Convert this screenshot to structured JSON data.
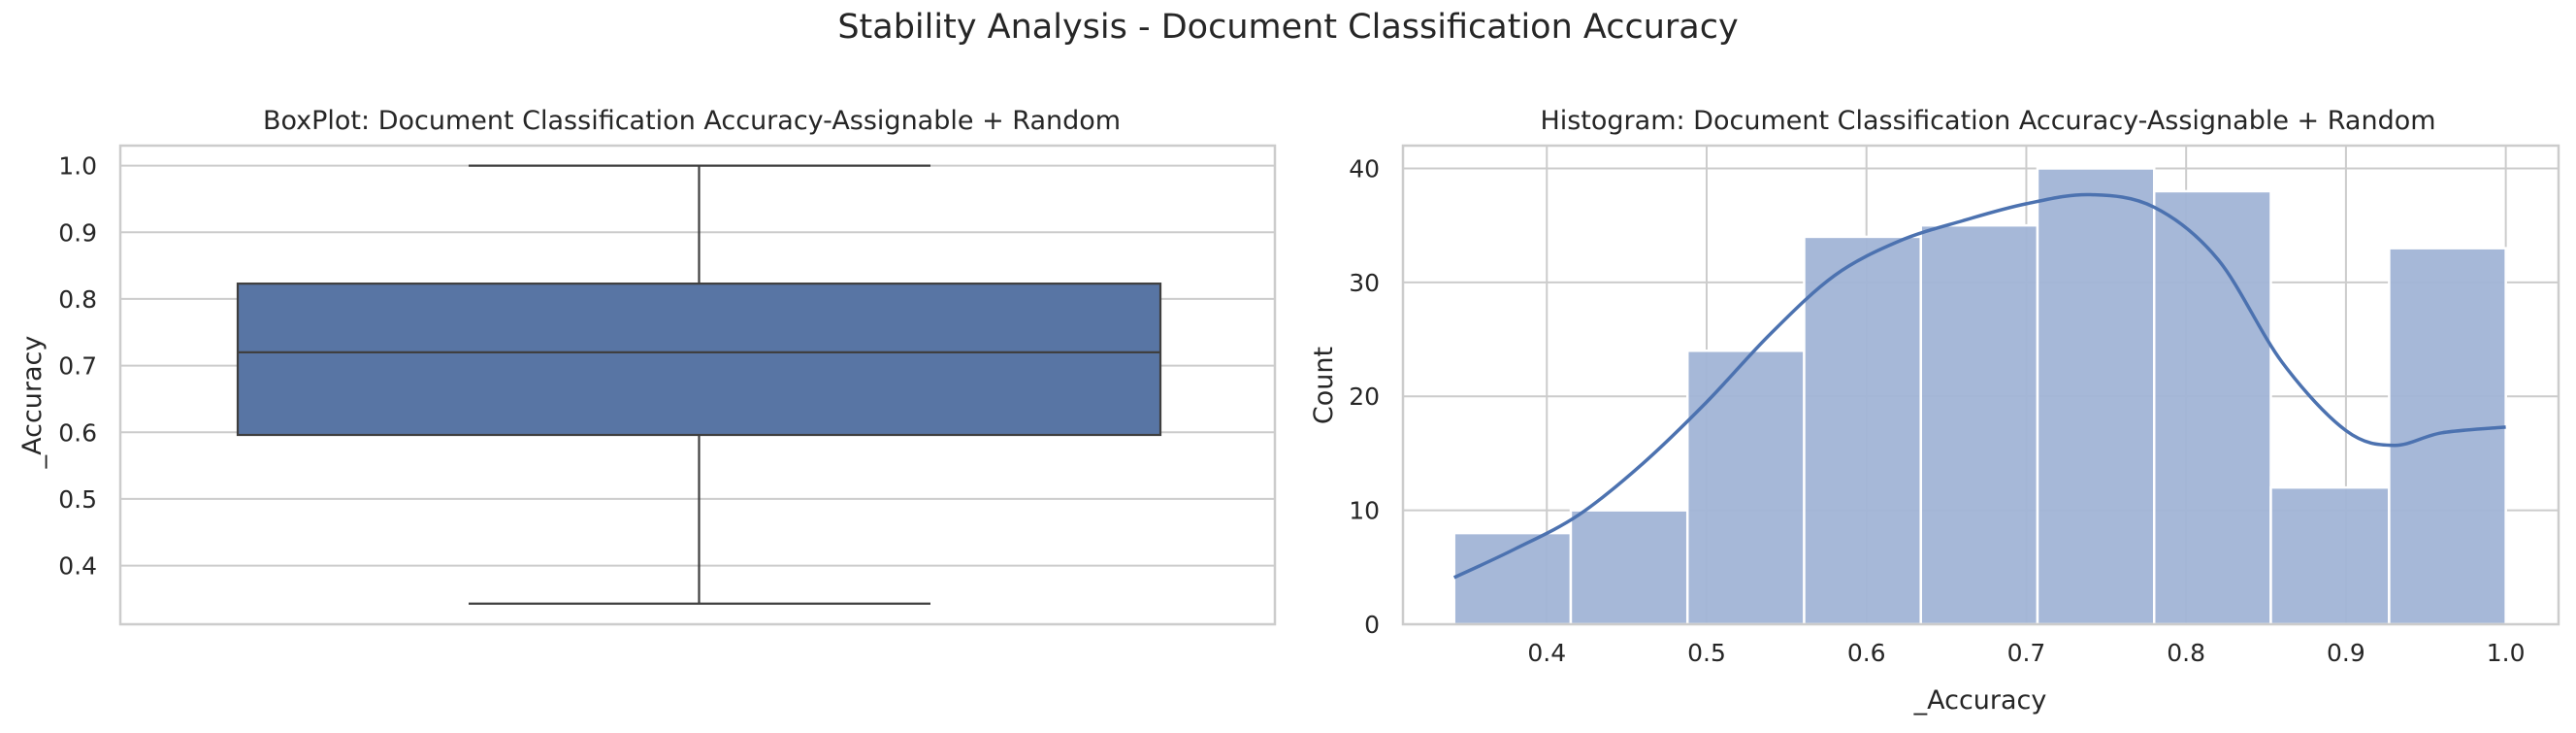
{
  "figure": {
    "suptitle": "Stability Analysis - Document Classification Accuracy"
  },
  "chart_data": [
    {
      "type": "box",
      "title": "BoxPlot: Document Classification Accuracy-Assignable + Random",
      "xlabel": "",
      "ylabel": "_Accuracy",
      "ylim": [
        0.312,
        1.03
      ],
      "yticks": [
        0.4,
        0.5,
        0.6,
        0.7,
        0.8,
        0.9,
        1.0
      ],
      "ytick_labels": [
        "0.4",
        "0.5",
        "0.6",
        "0.7",
        "0.8",
        "0.9",
        "1.0"
      ],
      "stats": {
        "whisker_low": 0.343,
        "q1": 0.596,
        "median": 0.72,
        "q3": 0.823,
        "whisker_high": 1.0
      },
      "color": "#5875a4",
      "grid": true
    },
    {
      "type": "bar",
      "subtype": "histogram",
      "title": "Histogram: Document Classification Accuracy-Assignable + Random",
      "xlabel": "_Accuracy",
      "ylabel": "Count",
      "xlim": [
        0.31,
        1.033
      ],
      "ylim": [
        0,
        42
      ],
      "xticks": [
        0.4,
        0.5,
        0.6,
        0.7,
        0.8,
        0.9,
        1.0
      ],
      "xtick_labels": [
        "0.4",
        "0.5",
        "0.6",
        "0.7",
        "0.8",
        "0.9",
        "1.0"
      ],
      "yticks": [
        0,
        10,
        20,
        30,
        40
      ],
      "ytick_labels": [
        "0",
        "10",
        "20",
        "30",
        "40"
      ],
      "bin_edges": [
        0.342,
        0.415,
        0.488,
        0.561,
        0.634,
        0.707,
        0.78,
        0.853,
        0.927,
        1.0
      ],
      "counts": [
        8,
        10,
        24,
        34,
        35,
        40,
        38,
        12,
        33
      ],
      "kde": {
        "x": [
          0.342,
          0.38,
          0.42,
          0.46,
          0.5,
          0.54,
          0.58,
          0.62,
          0.66,
          0.7,
          0.74,
          0.78,
          0.82,
          0.86,
          0.9,
          0.93,
          0.96,
          1.0
        ],
        "y": [
          4.1,
          6.6,
          9.6,
          14.1,
          19.5,
          25.5,
          30.6,
          33.6,
          35.4,
          36.9,
          37.7,
          36.6,
          32.0,
          23.0,
          17.0,
          15.7,
          16.8,
          17.3
        ]
      },
      "bar_color": "#a1b4d6",
      "line_color": "#4c72b0",
      "grid": true
    }
  ]
}
